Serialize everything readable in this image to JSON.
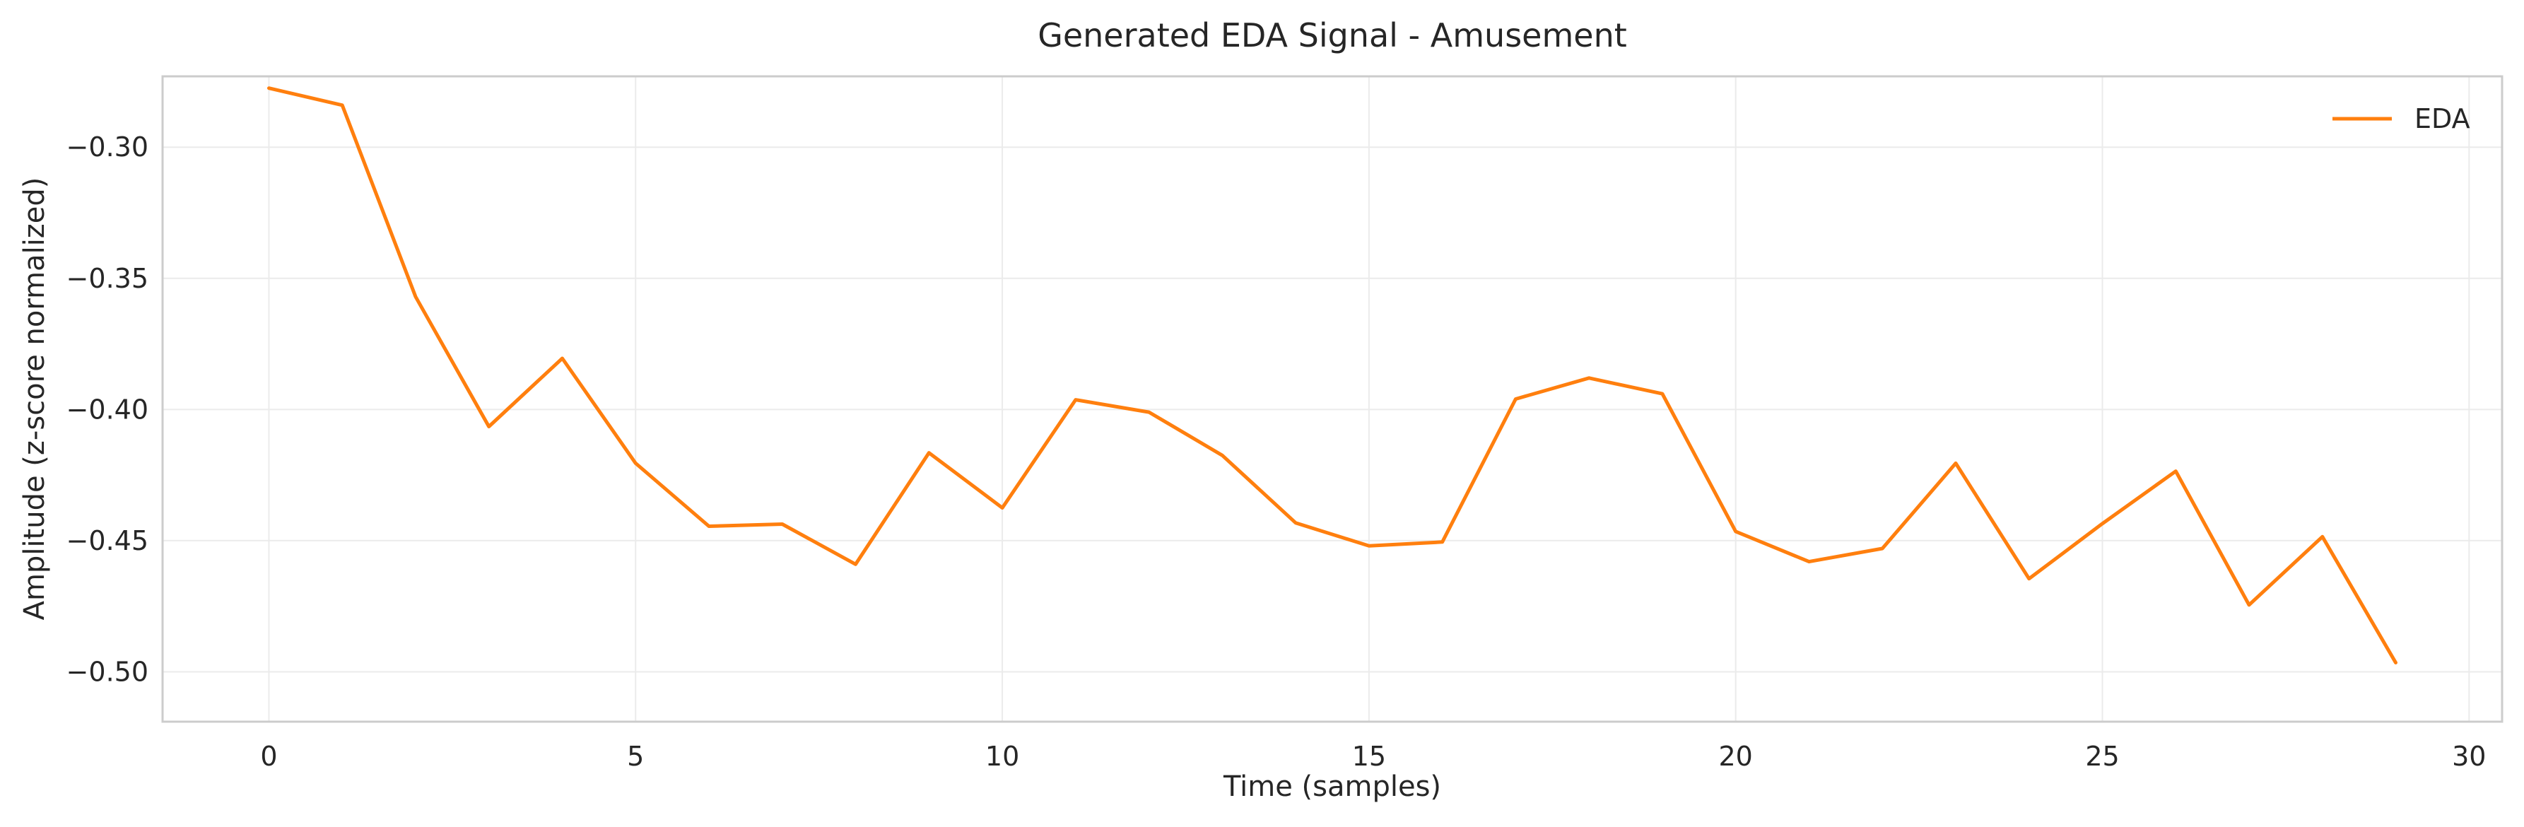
{
  "chart_data": {
    "type": "line",
    "title": "Generated EDA Signal - Amusement",
    "xlabel": "Time (samples)",
    "ylabel": "Amplitude (z-score normalized)",
    "xlim": [
      -1.45,
      30.45
    ],
    "ylim": [
      -0.519,
      -0.273
    ],
    "xticks": [
      0,
      5,
      10,
      15,
      20,
      25,
      30
    ],
    "xtick_labels": [
      "0",
      "5",
      "10",
      "15",
      "20",
      "25",
      "30"
    ],
    "yticks": [
      -0.3,
      -0.35,
      -0.4,
      -0.45,
      -0.5
    ],
    "ytick_labels": [
      "−0.30",
      "−0.35",
      "−0.40",
      "−0.45",
      "−0.50"
    ],
    "grid": true,
    "legend_position": "top-right",
    "series": [
      {
        "name": "EDA",
        "color": "#ff7f0e",
        "x": [
          0,
          1,
          2,
          3,
          4,
          5,
          6,
          7,
          8,
          9,
          10,
          11,
          12,
          13,
          14,
          15,
          16,
          17,
          18,
          19,
          20,
          21,
          22,
          23,
          24,
          25,
          26,
          27,
          28,
          29
        ],
        "y": [
          -0.2775,
          -0.284,
          -0.357,
          -0.4065,
          -0.3805,
          -0.4205,
          -0.4445,
          -0.4437,
          -0.459,
          -0.4165,
          -0.4375,
          -0.3963,
          -0.401,
          -0.4175,
          -0.4432,
          -0.452,
          -0.4505,
          -0.396,
          -0.388,
          -0.394,
          -0.4465,
          -0.458,
          -0.453,
          -0.4205,
          -0.4645,
          -0.4435,
          -0.4235,
          -0.4745,
          -0.4485,
          -0.4965
        ]
      }
    ]
  }
}
